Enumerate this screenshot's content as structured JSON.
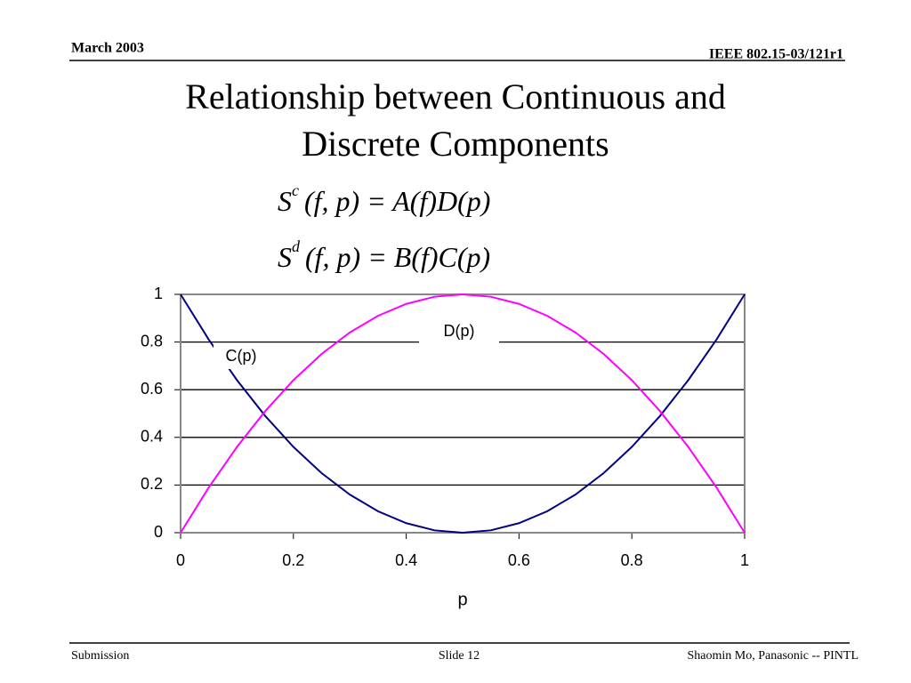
{
  "header": {
    "date": "March 2003",
    "doc_id": "IEEE 802.15-03/121r1"
  },
  "title": [
    "Relationship between Continuous and",
    "Discrete Components"
  ],
  "equations": [
    {
      "base": "S",
      "sup": "c",
      "rest": "(f, p) = A(f)D(p)"
    },
    {
      "base": "S",
      "sup": "d",
      "rest": "(f, p) = B(f)C(p)"
    }
  ],
  "chart_data": {
    "type": "line",
    "x_label": "p",
    "x": [
      0,
      0.05,
      0.1,
      0.15,
      0.2,
      0.25,
      0.3,
      0.35,
      0.4,
      0.45,
      0.5,
      0.55,
      0.6,
      0.65,
      0.7,
      0.75,
      0.8,
      0.85,
      0.9,
      0.95,
      1
    ],
    "series": [
      {
        "name": "C(p)",
        "color": "#000080",
        "values": [
          1,
          0.81,
          0.64,
          0.49,
          0.36,
          0.25,
          0.16,
          0.09,
          0.04,
          0.01,
          0,
          0.01,
          0.04,
          0.09,
          0.16,
          0.25,
          0.36,
          0.49,
          0.64,
          0.81,
          1
        ]
      },
      {
        "name": "D(p)",
        "color": "#ff00ff",
        "values": [
          0,
          0.19,
          0.36,
          0.51,
          0.64,
          0.75,
          0.84,
          0.91,
          0.96,
          0.99,
          1,
          0.99,
          0.96,
          0.91,
          0.84,
          0.75,
          0.64,
          0.51,
          0.36,
          0.19,
          0
        ]
      }
    ],
    "xlim": [
      0,
      1
    ],
    "xticks": [
      0,
      0.2,
      0.4,
      0.6,
      0.8,
      1
    ],
    "ylim": [
      0,
      1
    ],
    "yticks": [
      0,
      0.2,
      0.4,
      0.6,
      0.8,
      1
    ],
    "grid": true
  },
  "footer": {
    "left": "Submission",
    "center": "Slide 12",
    "right": "Shaomin Mo, Panasonic -- PINTL"
  }
}
